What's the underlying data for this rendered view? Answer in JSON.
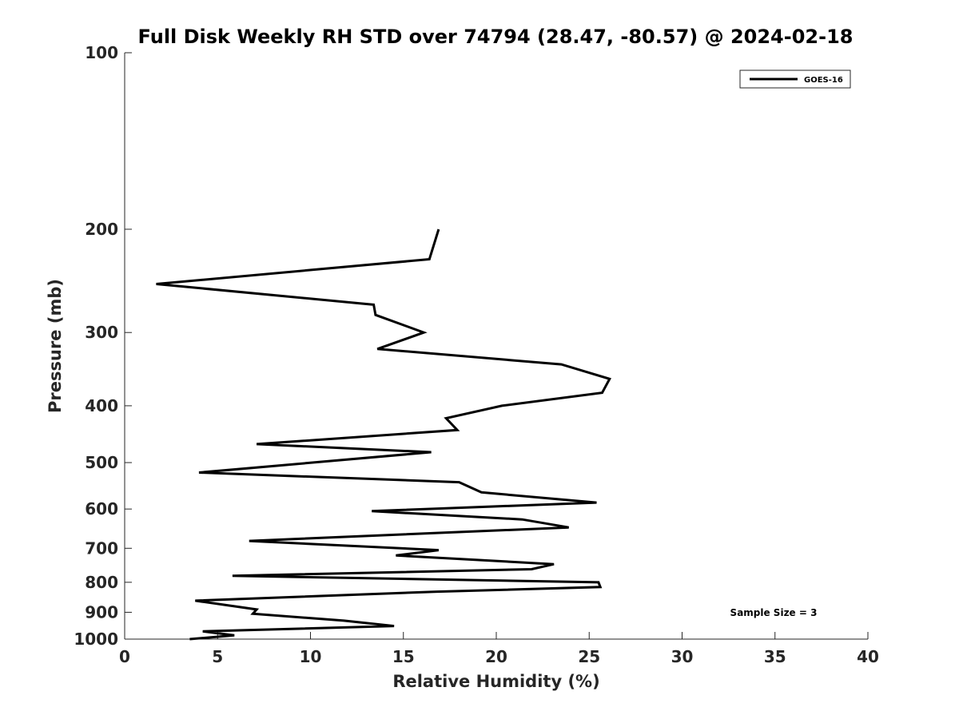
{
  "chart_data": {
    "type": "line",
    "title": "Full Disk Weekly RH STD over 74794 (28.47, -80.57) @ 2024-02-18",
    "xlabel": "Relative Humidity (%)",
    "ylabel": "Pressure (mb)",
    "xlim": [
      0,
      40
    ],
    "ylim": [
      100,
      1000
    ],
    "yscale": "log",
    "yreversed": true,
    "x_ticks": [
      0,
      5,
      10,
      15,
      20,
      25,
      30,
      35,
      40
    ],
    "y_ticks": [
      100,
      200,
      300,
      400,
      500,
      600,
      700,
      800,
      900,
      1000
    ],
    "legend_position": "top-right",
    "grid": false,
    "annotation": "Sample Size = 3",
    "series": [
      {
        "name": "GOES-16",
        "color": "#000000",
        "points": [
          {
            "x": 16.9,
            "p": 200
          },
          {
            "x": 16.4,
            "p": 225
          },
          {
            "x": 1.7,
            "p": 248
          },
          {
            "x": 13.4,
            "p": 269
          },
          {
            "x": 13.5,
            "p": 280
          },
          {
            "x": 16.1,
            "p": 300
          },
          {
            "x": 13.6,
            "p": 320
          },
          {
            "x": 23.5,
            "p": 340
          },
          {
            "x": 26.1,
            "p": 360
          },
          {
            "x": 25.7,
            "p": 380
          },
          {
            "x": 20.3,
            "p": 400
          },
          {
            "x": 17.3,
            "p": 420
          },
          {
            "x": 17.9,
            "p": 440
          },
          {
            "x": 7.1,
            "p": 465
          },
          {
            "x": 16.5,
            "p": 480
          },
          {
            "x": 4.0,
            "p": 520
          },
          {
            "x": 18.0,
            "p": 540
          },
          {
            "x": 19.2,
            "p": 562
          },
          {
            "x": 25.4,
            "p": 585
          },
          {
            "x": 13.3,
            "p": 605
          },
          {
            "x": 21.4,
            "p": 625
          },
          {
            "x": 23.9,
            "p": 645
          },
          {
            "x": 6.7,
            "p": 680
          },
          {
            "x": 16.9,
            "p": 705
          },
          {
            "x": 14.6,
            "p": 720
          },
          {
            "x": 23.1,
            "p": 745
          },
          {
            "x": 21.9,
            "p": 760
          },
          {
            "x": 5.8,
            "p": 780
          },
          {
            "x": 25.5,
            "p": 800
          },
          {
            "x": 25.6,
            "p": 815
          },
          {
            "x": 16.8,
            "p": 830
          },
          {
            "x": 3.8,
            "p": 860
          },
          {
            "x": 7.1,
            "p": 890
          },
          {
            "x": 6.9,
            "p": 905
          },
          {
            "x": 11.8,
            "p": 930
          },
          {
            "x": 14.5,
            "p": 950
          },
          {
            "x": 4.2,
            "p": 970
          },
          {
            "x": 5.9,
            "p": 985
          },
          {
            "x": 3.5,
            "p": 1000
          }
        ]
      }
    ]
  }
}
